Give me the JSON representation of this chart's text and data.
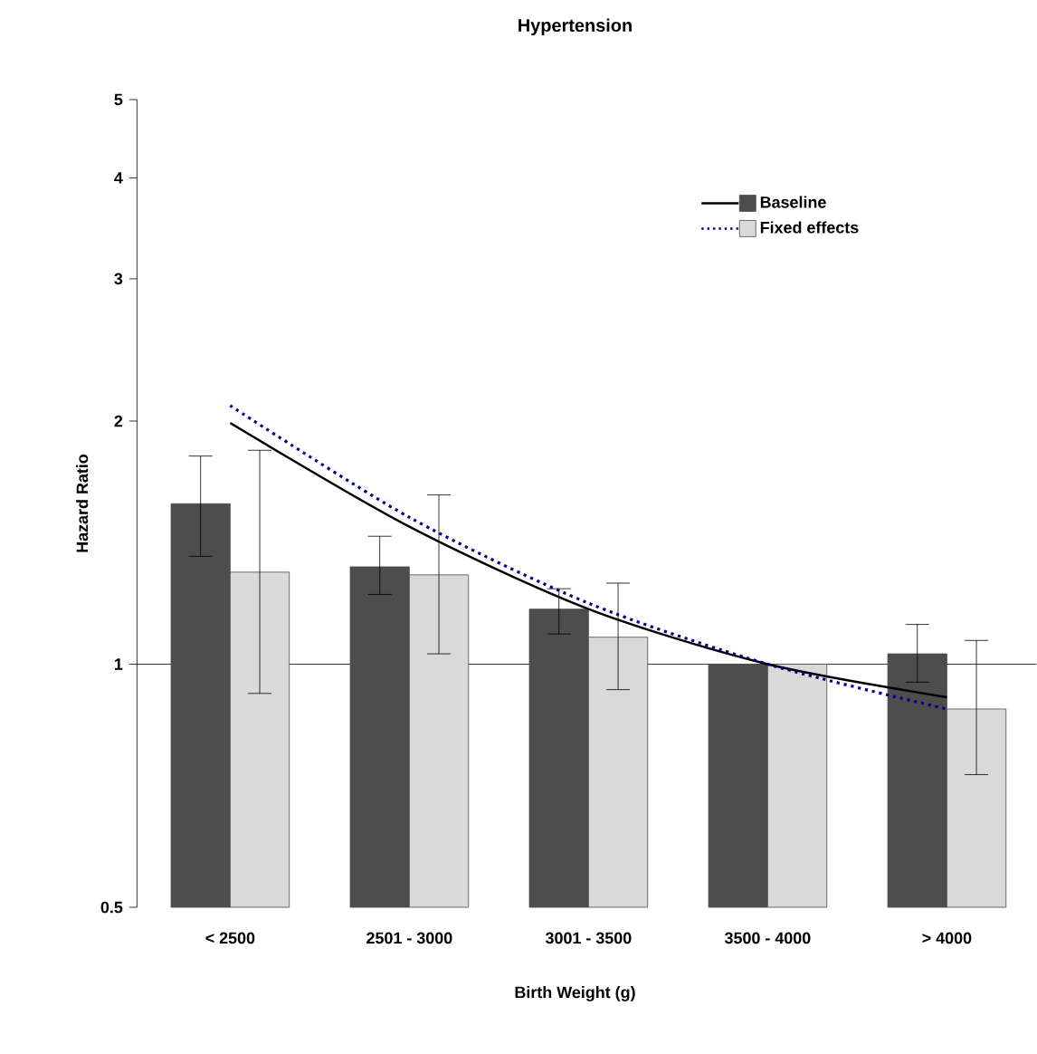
{
  "chart_data": {
    "type": "bar",
    "title": "Hypertension",
    "xlabel": "Birth Weight (g)",
    "ylabel": "Hazard Ratio",
    "categories": [
      "< 2500",
      "2501 - 3000",
      "3001 - 3500",
      "3500 - 4000",
      "> 4000"
    ],
    "series": [
      {
        "name": "Baseline",
        "color": "#4d4d4d",
        "values": [
          1.58,
          1.32,
          1.17,
          1.0,
          1.03
        ],
        "errors": [
          [
            1.36,
            1.81
          ],
          [
            1.22,
            1.44
          ],
          [
            1.09,
            1.24
          ],
          null,
          [
            0.95,
            1.12
          ]
        ]
      },
      {
        "name": "Fixed effects",
        "color": "#d9d9d9",
        "values": [
          1.3,
          1.29,
          1.08,
          1.0,
          0.88
        ],
        "errors": [
          [
            0.92,
            1.84
          ],
          [
            1.03,
            1.62
          ],
          [
            0.93,
            1.26
          ],
          null,
          [
            0.73,
            1.07
          ]
        ]
      },
      {
        "type": "line",
        "color": "#000000",
        "line_style": "solid",
        "values": [
          1.99,
          1.48,
          1.17,
          1.0,
          0.91
        ]
      },
      {
        "type": "line",
        "color": "#00008b",
        "line_style": "dotted",
        "values": [
          2.09,
          1.52,
          1.19,
          1.0,
          0.88
        ]
      }
    ],
    "log": "y",
    "ylim": [
      0.5,
      5
    ],
    "yticks": [
      0.5,
      1,
      2,
      3,
      4,
      5
    ],
    "ref_lines": [
      {
        "axis": "y",
        "value": 1,
        "color": "#000000"
      }
    ],
    "legend": "top right",
    "grid": false
  }
}
